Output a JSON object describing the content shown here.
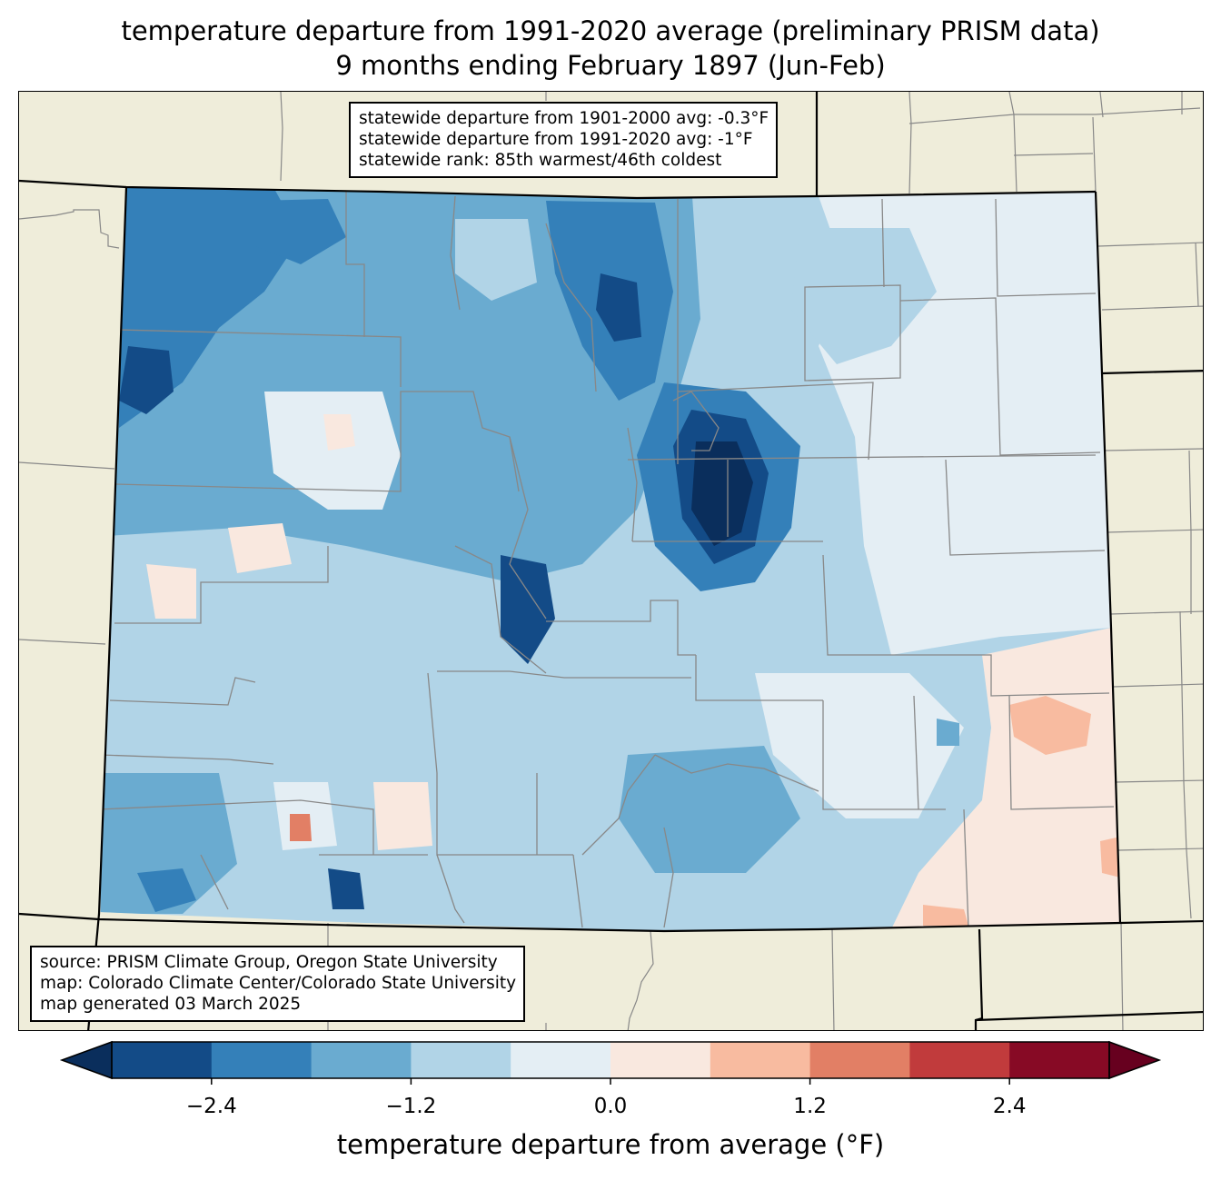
{
  "title": {
    "line1": "temperature departure from 1991-2020 average (preliminary PRISM data)",
    "line2": "9 months ending February 1897 (Jun-Feb)"
  },
  "stats_box": {
    "line1": "statewide departure from 1901-2000 avg: -0.3°F",
    "line2": "statewide departure from 1991-2020 avg: -1°F",
    "line3": "statewide rank: 85th warmest/46th coldest"
  },
  "source_box": {
    "line1": "source: PRISM Climate Group, Oregon State University",
    "line2": "map: Colorado Climate Center/Colorado State University",
    "line3": "map generated 03 March 2025"
  },
  "map": {
    "region": "Colorado",
    "background_color": "#efedda",
    "state_border_color": "#000000",
    "county_border_color": "#888888"
  },
  "colorbar": {
    "label": "temperature departure from average (°F)",
    "levels": [
      -3.0,
      -2.4,
      -1.8,
      -1.2,
      -0.6,
      0.0,
      0.6,
      1.2,
      1.8,
      2.4,
      3.0
    ],
    "colors": [
      "#134b87",
      "#3480b9",
      "#6aabd0",
      "#b1d4e7",
      "#e4eef4",
      "#f9e8df",
      "#f8bba0",
      "#e27f65",
      "#c13b3c",
      "#870a25"
    ],
    "under_color": "#0a2e5c",
    "over_color": "#67001f",
    "ticks": [
      {
        "value": -2.4,
        "label": "−2.4"
      },
      {
        "value": -1.2,
        "label": "−1.2"
      },
      {
        "value": 0.0,
        "label": "0.0"
      },
      {
        "value": 1.2,
        "label": "1.2"
      },
      {
        "value": 2.4,
        "label": "2.4"
      }
    ],
    "extend": "both"
  }
}
